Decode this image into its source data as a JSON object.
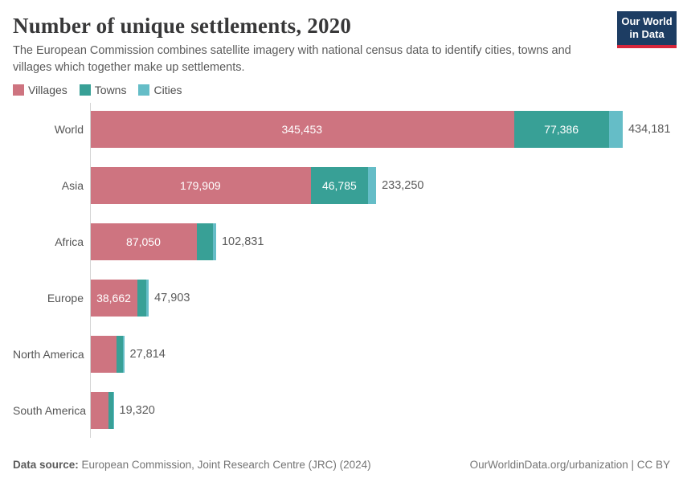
{
  "header": {
    "title": "Number of unique settlements, 2020",
    "subtitle": "The European Commission combines satellite imagery with national census data to identify cities, towns and villages which together make up settlements.",
    "logo_line1": "Our World",
    "logo_line2": "in Data",
    "logo_bg_color": "#1d3d63",
    "logo_accent_color": "#d7263b"
  },
  "chart_data": {
    "type": "bar",
    "stacked": true,
    "horizontal": true,
    "title": "Number of unique settlements, 2020",
    "categories": [
      "World",
      "Asia",
      "Africa",
      "Europe",
      "North America",
      "South America"
    ],
    "series": [
      {
        "name": "Villages",
        "color": "#ce7480",
        "values": [
          345453,
          179909,
          87050,
          38662,
          21615,
          15065
        ],
        "shown_labels": [
          "345,453",
          "179,909",
          "87,050",
          "38,662",
          null,
          null
        ]
      },
      {
        "name": "Towns",
        "color": "#38a096",
        "values": [
          77386,
          46785,
          13100,
          7200,
          5240,
          3930
        ],
        "shown_labels": [
          "77,386",
          "46,785",
          null,
          null,
          null,
          null
        ]
      },
      {
        "name": "Cities",
        "color": "#65bdc7",
        "values": [
          11342,
          6556,
          2681,
          2041,
          959,
          325
        ],
        "shown_labels": [
          null,
          null,
          null,
          null,
          null,
          null
        ]
      }
    ],
    "totals": [
      434181,
      233250,
      102831,
      47903,
      27814,
      19320
    ],
    "total_labels": [
      "434,181",
      "233,250",
      "102,831",
      "47,903",
      "27,814",
      "19,320"
    ],
    "xlim": [
      0,
      434181
    ],
    "legend_position": "top",
    "grid": false
  },
  "footer": {
    "datasource_label": "Data source:",
    "datasource_text": " European Commission, Joint Research Centre (JRC) (2024)",
    "credit": "OurWorldinData.org/urbanization | CC BY"
  }
}
